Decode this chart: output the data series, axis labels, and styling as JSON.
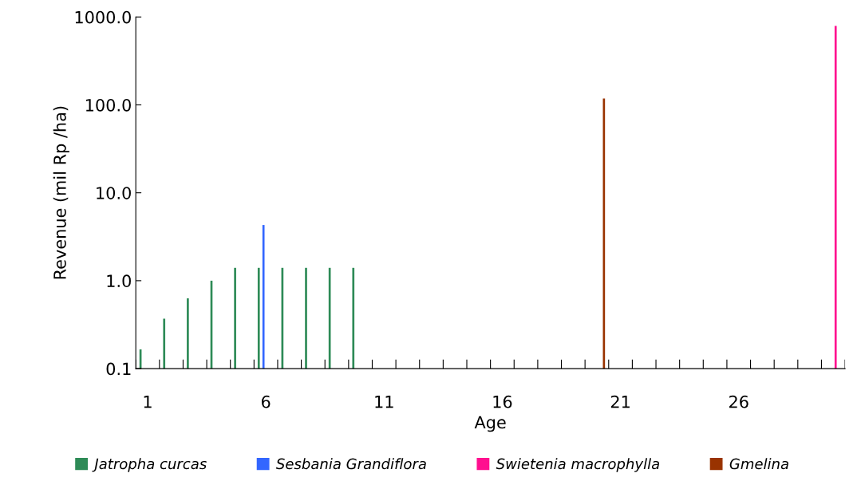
{
  "chart_data": {
    "type": "bar",
    "xlabel": "Age",
    "ylabel": "Revenue (mil Rp /ha)",
    "log": "y",
    "categories": [
      "1",
      null,
      null,
      null,
      null,
      "6",
      null,
      null,
      null,
      null,
      "11",
      null,
      null,
      null,
      null,
      "16",
      null,
      null,
      null,
      null,
      "21",
      null,
      null,
      null,
      null,
      "26",
      null,
      null,
      null,
      null
    ],
    "series": [
      {
        "name": "Jatropha curcas",
        "color": "#2e8b57",
        "values": [
          0.165,
          0.37,
          0.63,
          1.0,
          1.4,
          1.4,
          1.4,
          1.4,
          1.4,
          1.4,
          null,
          null,
          null,
          null,
          null,
          null,
          null,
          null,
          null,
          null,
          null,
          null,
          null,
          null,
          null,
          null,
          null,
          null,
          null,
          null
        ]
      },
      {
        "name": "Sesbania Grandiflora",
        "color": "#3366ff",
        "values": [
          null,
          null,
          null,
          null,
          null,
          4.3,
          null,
          null,
          null,
          null,
          null,
          null,
          null,
          null,
          null,
          null,
          null,
          null,
          null,
          null,
          null,
          null,
          null,
          null,
          null,
          null,
          null,
          null,
          null,
          null
        ]
      },
      {
        "name": "Swietenia macrophylla",
        "color": "#ff0f8f",
        "values": [
          null,
          null,
          null,
          null,
          null,
          null,
          null,
          null,
          null,
          null,
          null,
          null,
          null,
          null,
          null,
          null,
          null,
          null,
          null,
          null,
          null,
          null,
          null,
          null,
          null,
          null,
          null,
          null,
          null,
          790
        ]
      },
      {
        "name": "Gmelina",
        "color": "#993300",
        "values": [
          null,
          null,
          null,
          null,
          null,
          null,
          null,
          null,
          null,
          null,
          null,
          null,
          null,
          null,
          null,
          null,
          null,
          null,
          null,
          118,
          null,
          null,
          null,
          null,
          null,
          null,
          null,
          null,
          null,
          null
        ]
      }
    ],
    "ylim": [
      0.1,
      1000
    ],
    "yticks": [
      {
        "value": 0.1,
        "label": "0.1"
      },
      {
        "value": 1,
        "label": "1.0"
      },
      {
        "value": 10,
        "label": "10.0"
      },
      {
        "value": 100,
        "label": "100.0"
      },
      {
        "value": 1000,
        "label": "1000.0"
      }
    ],
    "grid": false,
    "legend": "bottom"
  }
}
